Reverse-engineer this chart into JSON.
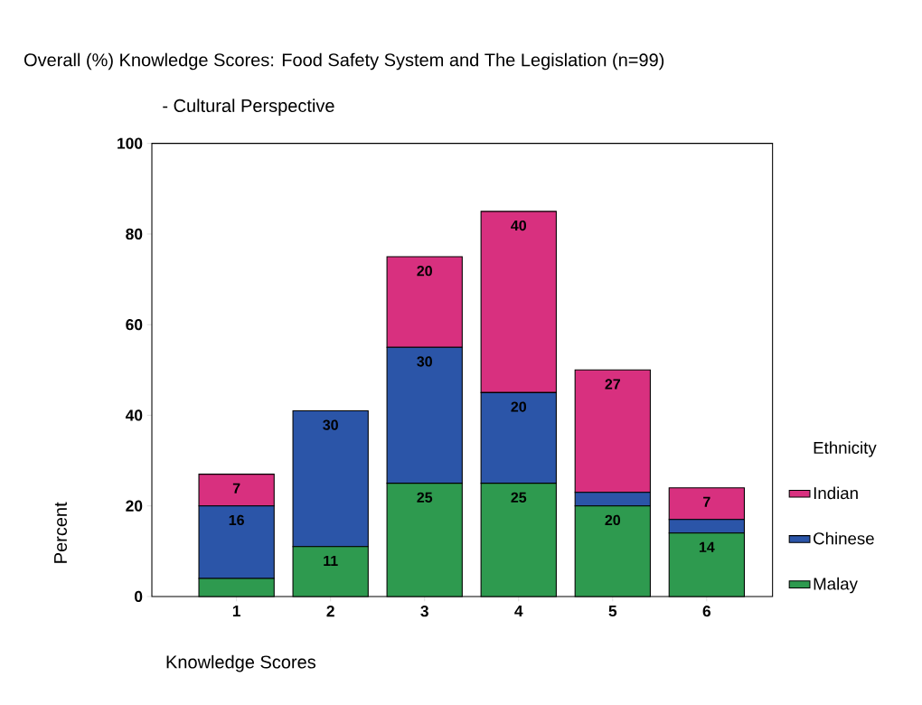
{
  "chart_data": {
    "type": "bar",
    "stacked": true,
    "title": "Overall (%) Knowledge Scores: Food Safety System and The Legislation (n=99)",
    "subtitle": "- Cultural Perspective",
    "xlabel": "Knowledge Scores",
    "ylabel": "Percent",
    "legend_title": "Ethnicity",
    "legend": "right",
    "categories": [
      "1",
      "2",
      "3",
      "4",
      "5",
      "6"
    ],
    "ylim": [
      0,
      100
    ],
    "yticks": [
      0,
      20,
      40,
      60,
      80,
      100
    ],
    "series": [
      {
        "name": "Malay",
        "color": "#2e9a4f",
        "values": [
          4,
          11,
          25,
          25,
          20,
          14
        ],
        "value_labels": [
          null,
          "11",
          "25",
          "25",
          "20",
          "14"
        ]
      },
      {
        "name": "Chinese",
        "color": "#2b55a8",
        "values": [
          16,
          30,
          30,
          20,
          3,
          3
        ],
        "value_labels": [
          "16",
          "30",
          "30",
          "20",
          null,
          null
        ]
      },
      {
        "name": "Indian",
        "color": "#d8307f",
        "values": [
          7,
          0,
          20,
          40,
          27,
          7
        ],
        "value_labels": [
          "7",
          null,
          "20",
          "40",
          "27",
          "7"
        ]
      }
    ]
  }
}
